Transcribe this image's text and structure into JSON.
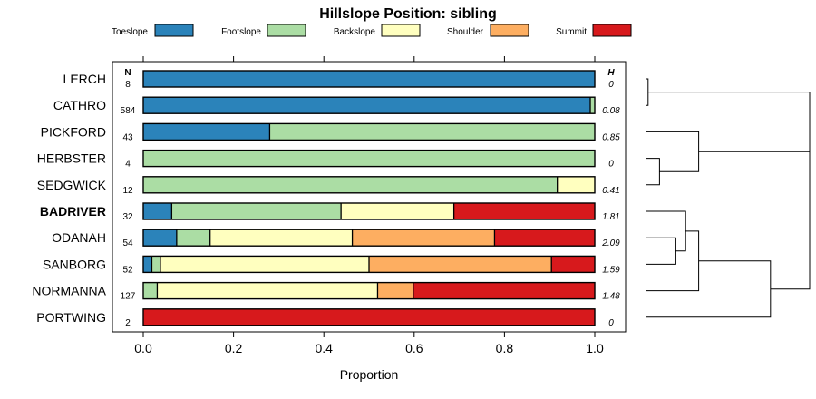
{
  "chart_data": {
    "type": "bar",
    "orientation": "horizontal",
    "stacked": true,
    "title": "Hillslope Position: sibling",
    "xlabel": "Proportion",
    "ylabel": "",
    "xlim": [
      -0.07,
      1.07
    ],
    "xticks": [
      0.0,
      0.2,
      0.4,
      0.6,
      0.8,
      1.0
    ],
    "xtick_labels": [
      "0.0",
      "0.2",
      "0.4",
      "0.6",
      "0.8",
      "1.0"
    ],
    "legend_position": "top",
    "n_header": "N",
    "h_header": "H",
    "series": [
      {
        "name": "Toeslope",
        "color": "#2B83BA"
      },
      {
        "name": "Footslope",
        "color": "#ABDDA4"
      },
      {
        "name": "Backslope",
        "color": "#FFFFBF"
      },
      {
        "name": "Shoulder",
        "color": "#FDAE61"
      },
      {
        "name": "Summit",
        "color": "#D7191C"
      }
    ],
    "categories": [
      "LERCH",
      "CATHRO",
      "PICKFORD",
      "HERBSTER",
      "SEDGWICK",
      "BADRIVER",
      "ODANAH",
      "SANBORG",
      "NORMANNA",
      "PORTWING"
    ],
    "highlight": "BADRIVER",
    "rows": [
      {
        "name": "LERCH",
        "n": "8",
        "h": "0",
        "values": [
          1.0,
          0,
          0,
          0,
          0
        ]
      },
      {
        "name": "CATHRO",
        "n": "584",
        "h": "0.08",
        "values": [
          0.99,
          0.01,
          0,
          0,
          0
        ]
      },
      {
        "name": "PICKFORD",
        "n": "43",
        "h": "0.85",
        "values": [
          0.28,
          0.72,
          0,
          0,
          0
        ]
      },
      {
        "name": "HERBSTER",
        "n": "4",
        "h": "0",
        "values": [
          0,
          1.0,
          0,
          0,
          0
        ]
      },
      {
        "name": "SEDGWICK",
        "n": "12",
        "h": "0.41",
        "values": [
          0,
          0.917,
          0.083,
          0,
          0
        ]
      },
      {
        "name": "BADRIVER",
        "n": "32",
        "h": "1.81",
        "values": [
          0.063,
          0.375,
          0.25,
          0,
          0.312
        ]
      },
      {
        "name": "ODANAH",
        "n": "54",
        "h": "2.09",
        "values": [
          0.074,
          0.074,
          0.315,
          0.315,
          0.222
        ]
      },
      {
        "name": "SANBORG",
        "n": "52",
        "h": "1.59",
        "values": [
          0.019,
          0.019,
          0.462,
          0.404,
          0.096
        ]
      },
      {
        "name": "NORMANNA",
        "n": "127",
        "h": "1.48",
        "values": [
          0,
          0.031,
          0.488,
          0.079,
          0.402
        ]
      },
      {
        "name": "PORTWING",
        "n": "2",
        "h": "0",
        "values": [
          0,
          0,
          0,
          0,
          1.0
        ]
      }
    ],
    "dendrogram": {
      "type": "hierarchical-clustering",
      "merges": [
        {
          "id": "m1",
          "members": [
            "LERCH",
            "CATHRO"
          ],
          "height": 0.01
        },
        {
          "id": "m2",
          "members": [
            "HERBSTER",
            "SEDGWICK"
          ],
          "height": 0.08
        },
        {
          "id": "m3",
          "members": [
            "PICKFORD",
            "m2"
          ],
          "height": 0.32
        },
        {
          "id": "m4",
          "members": [
            "m1",
            "m3"
          ],
          "height": 1.0
        },
        {
          "id": "m5",
          "members": [
            "ODANAH",
            "SANBORG"
          ],
          "height": 0.18
        },
        {
          "id": "m6",
          "members": [
            "BADRIVER",
            "m5"
          ],
          "height": 0.24
        },
        {
          "id": "m7",
          "members": [
            "m6",
            "NORMANNA"
          ],
          "height": 0.32
        },
        {
          "id": "m8",
          "members": [
            "m7",
            "PORTWING"
          ],
          "height": 0.76
        },
        {
          "id": "m9",
          "members": [
            "m4",
            "m8"
          ],
          "height": 1.0
        }
      ]
    }
  }
}
